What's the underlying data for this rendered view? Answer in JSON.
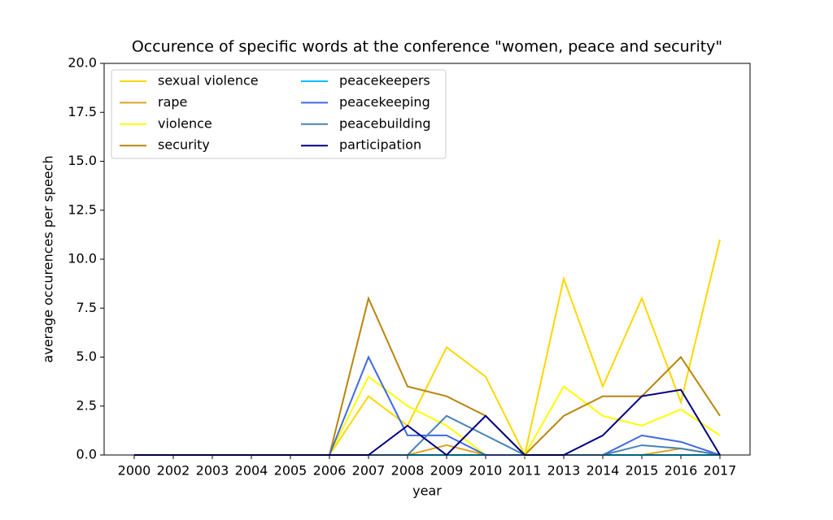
{
  "chart_data": {
    "type": "line",
    "title": "Occurence of specific words at the conference \"women, peace and security\"",
    "x_label": "year",
    "y_label": "average occurences per speech",
    "categories": [
      "2000",
      "2002",
      "2003",
      "2004",
      "2005",
      "2006",
      "2007",
      "2008",
      "2009",
      "2010",
      "2011",
      "2013",
      "2014",
      "2015",
      "2016",
      "2017"
    ],
    "ylim": [
      0,
      20
    ],
    "yticks": [
      {
        "value": 0,
        "label": "0.0"
      },
      2.5,
      {
        "value": 5,
        "label": "5.0"
      },
      7.5,
      {
        "value": 10,
        "label": "10.0"
      },
      12.5,
      {
        "value": 15,
        "label": "15.0"
      },
      17.5,
      {
        "value": 20,
        "label": "20.0"
      }
    ],
    "legend": "upper left",
    "series": [
      {
        "name": "sexual violence",
        "color": "#ffd700",
        "values": [
          0,
          0,
          0,
          0,
          0,
          0,
          3,
          1.5,
          5.5,
          4,
          0,
          9,
          3.5,
          8,
          2.7,
          11
        ]
      },
      {
        "name": "rape",
        "color": "#daa520",
        "values": [
          0,
          0,
          0,
          0,
          0,
          0,
          0,
          0,
          0.5,
          0,
          0,
          0,
          0,
          0,
          0.33,
          0
        ]
      },
      {
        "name": "violence",
        "color": "#ffff00",
        "values": [
          0,
          0,
          0,
          0,
          0,
          0,
          4,
          2.5,
          1.5,
          0,
          0,
          3.5,
          2,
          1.5,
          2.33,
          1
        ]
      },
      {
        "name": "security",
        "color": "#b8860b",
        "values": [
          0,
          0,
          0,
          0,
          0,
          0,
          8,
          3.5,
          3,
          2,
          0,
          2,
          3,
          3,
          5,
          2
        ]
      },
      {
        "name": "peacekeepers",
        "color": "#00bfff",
        "values": [
          0,
          0,
          0,
          0,
          0,
          0,
          0,
          0,
          0,
          0,
          0,
          0,
          0,
          0,
          0,
          0
        ]
      },
      {
        "name": "peacekeeping",
        "color": "#4169e1",
        "values": [
          0,
          0,
          0,
          0,
          0,
          0,
          5,
          1,
          1,
          0,
          0,
          0,
          0,
          1,
          0.67,
          0
        ]
      },
      {
        "name": "peacebuilding",
        "color": "#4682b4",
        "values": [
          0,
          0,
          0,
          0,
          0,
          0,
          0,
          0,
          2,
          1,
          0,
          0,
          0,
          0.5,
          0.33,
          0
        ]
      },
      {
        "name": "participation",
        "color": "#000080",
        "values": [
          0,
          0,
          0,
          0,
          0,
          0,
          0,
          1.5,
          0,
          2,
          0,
          0,
          1,
          3,
          3.33,
          0
        ]
      }
    ]
  }
}
